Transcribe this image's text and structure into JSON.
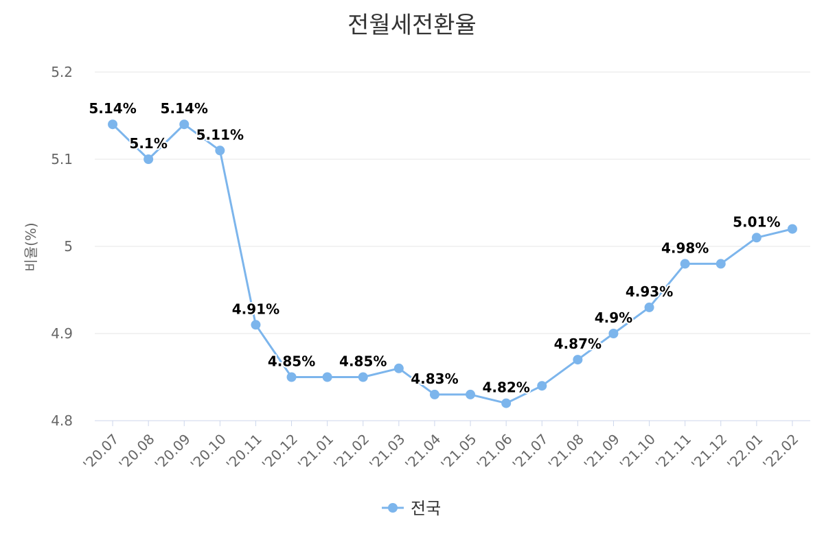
{
  "chart_data": {
    "type": "line",
    "title": "전월세전환율",
    "ylabel": "비율(%)",
    "xlabel": "",
    "ylim": [
      4.8,
      5.2
    ],
    "yticks": [
      "4.8",
      "4.9",
      "5",
      "5.1",
      "5.2"
    ],
    "grid": true,
    "legend_position": "bottom",
    "categories": [
      "'20.07",
      "'20.08",
      "'20.09",
      "'20.10",
      "'20.11",
      "'20.12",
      "'21.01",
      "'21.02",
      "'21.03",
      "'21.04",
      "'21.05",
      "'21.06",
      "'21.07",
      "'21.08",
      "'21.09",
      "'21.10",
      "'21.11",
      "'21.12",
      "'22.01",
      "'22.02"
    ],
    "series": [
      {
        "name": "전국",
        "color": "#7cb5ec",
        "values": [
          5.14,
          5.1,
          5.14,
          5.11,
          4.91,
          4.85,
          4.85,
          4.85,
          4.86,
          4.83,
          4.83,
          4.82,
          4.84,
          4.87,
          4.9,
          4.93,
          4.98,
          4.98,
          5.01,
          5.02
        ],
        "data_labels": [
          "5.14%",
          "5.1%",
          "5.14%",
          "5.11%",
          "4.91%",
          "4.85%",
          null,
          "4.85%",
          null,
          "4.83%",
          null,
          "4.82%",
          null,
          "4.87%",
          "4.9%",
          "4.93%",
          "4.98%",
          null,
          "5.01%",
          null
        ]
      }
    ]
  }
}
